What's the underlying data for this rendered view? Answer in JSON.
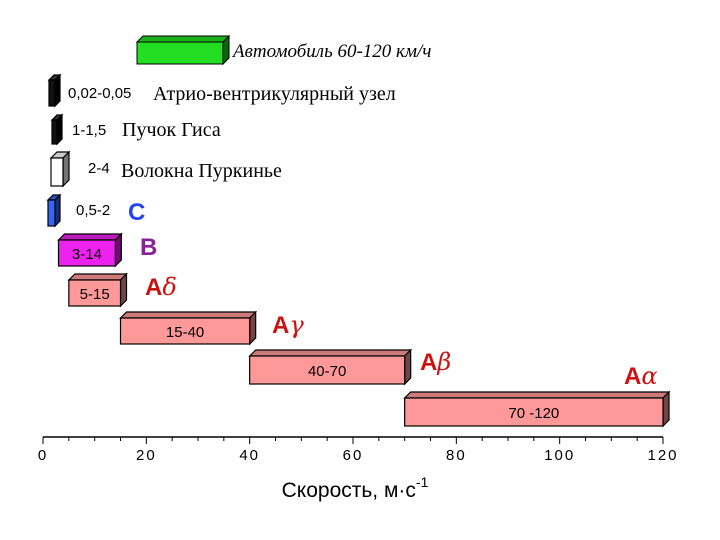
{
  "chart_data": {
    "type": "bar",
    "orientation": "horizontal-range",
    "xlabel": "Скорость, м·с",
    "xlabel_superscript": "-1",
    "xlim": [
      0,
      120
    ],
    "xticks": [
      0,
      20,
      40,
      60,
      80,
      100,
      120
    ],
    "car": {
      "label": "Автомобиль 60-120 км/ч",
      "color": "#22dd22"
    },
    "bars": [
      {
        "range_label": "0,02-0,05",
        "name": "Атрио-вентрикулярный узел",
        "min": 0.02,
        "max": 0.05,
        "color": "#111111"
      },
      {
        "range_label": "1-1,5",
        "name": "Пучок Гиса",
        "min": 1,
        "max": 1.5,
        "color": "#111111"
      },
      {
        "range_label": "2-4",
        "name": "Волокна Пуркинье",
        "min": 2,
        "max": 4,
        "color": "#ffffff"
      },
      {
        "range_label": "0,5-2",
        "name": "C",
        "min": 0.5,
        "max": 2,
        "color": "#3366ff",
        "name_color": "#2244ee"
      },
      {
        "range_label": "3-14",
        "name": "B",
        "min": 3,
        "max": 14,
        "color": "#ee22ee",
        "name_color": "#882299"
      },
      {
        "range_label": "5-15",
        "name": "A",
        "greek": "δ",
        "min": 5,
        "max": 15,
        "color": "#ff9999",
        "name_color": "#cc1111"
      },
      {
        "range_label": "15-40",
        "name": "A",
        "greek": "γ",
        "min": 15,
        "max": 40,
        "color": "#ff9999",
        "name_color": "#cc1111"
      },
      {
        "range_label": "40-70",
        "name": "A",
        "greek": "β",
        "min": 40,
        "max": 70,
        "color": "#ff9999",
        "name_color": "#cc1111"
      },
      {
        "range_label": "70 -120",
        "name": "A",
        "greek": "α",
        "min": 70,
        "max": 120,
        "color": "#ff9999",
        "name_color": "#cc1111"
      }
    ]
  }
}
